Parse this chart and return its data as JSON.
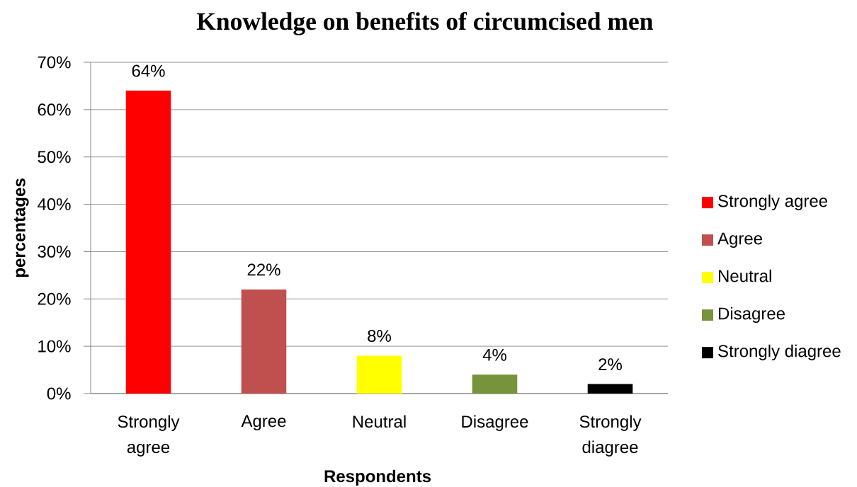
{
  "chart_data": {
    "type": "bar",
    "title": "Knowledge on  benefits of circumcised men",
    "xlabel": "Respondents",
    "ylabel": "percentages",
    "categories": [
      "Strongly agree",
      "Agree",
      "Neutral",
      "Disagree",
      "Strongly diagree"
    ],
    "series": [
      {
        "name": "Strongly agree",
        "color": "#ff0000",
        "values": [
          64,
          null,
          null,
          null,
          null
        ],
        "value_labels": [
          "64%",
          null,
          null,
          null,
          null
        ]
      },
      {
        "name": "Agree",
        "color": "#c0504d",
        "values": [
          null,
          22,
          null,
          null,
          null
        ],
        "value_labels": [
          null,
          "22%",
          null,
          null,
          null
        ]
      },
      {
        "name": "Neutral",
        "color": "#ffff00",
        "values": [
          null,
          null,
          8,
          null,
          null
        ],
        "value_labels": [
          null,
          null,
          "8%",
          null,
          null
        ]
      },
      {
        "name": "Disagree",
        "color": "#77933c",
        "values": [
          null,
          null,
          null,
          4,
          null
        ],
        "value_labels": [
          null,
          null,
          null,
          "4%",
          null
        ]
      },
      {
        "name": "Strongly diagree",
        "color": "#000000",
        "values": [
          null,
          null,
          null,
          null,
          2
        ],
        "value_labels": [
          null,
          null,
          null,
          null,
          "2%"
        ]
      }
    ],
    "stacked": true,
    "ylim": [
      0,
      70
    ],
    "yticks": [
      {
        "value": 0,
        "label": "0%"
      },
      {
        "value": 10,
        "label": "10%"
      },
      {
        "value": 20,
        "label": "20%"
      },
      {
        "value": 30,
        "label": "30%"
      },
      {
        "value": 40,
        "label": "40%"
      },
      {
        "value": 50,
        "label": "50%"
      },
      {
        "value": 60,
        "label": "60%"
      },
      {
        "value": 70,
        "label": "70%"
      }
    ],
    "grid": "y",
    "legend": "right"
  }
}
